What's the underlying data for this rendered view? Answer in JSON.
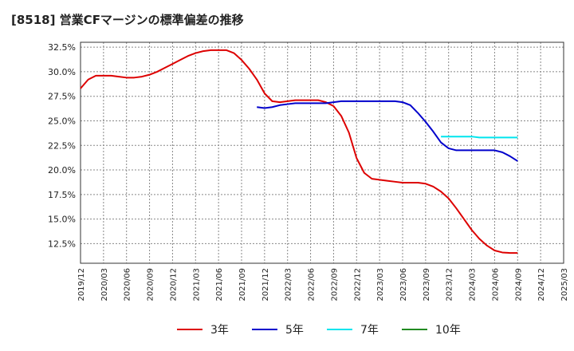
{
  "chart_data": {
    "type": "line",
    "title": "[8518]  営業CFマージンの標準偏差の推移",
    "xlabel": "",
    "ylabel": "",
    "ylim": [
      10.5,
      33.0
    ],
    "y_ticks": [
      12.5,
      15.0,
      17.5,
      20.0,
      22.5,
      25.0,
      27.5,
      30.0,
      32.5
    ],
    "y_tick_labels": [
      "12.5%",
      "15.0%",
      "17.5%",
      "20.0%",
      "22.5%",
      "25.0%",
      "27.5%",
      "30.0%",
      "32.5%"
    ],
    "x_tick_labels": [
      "2019/12",
      "2020/03",
      "2020/06",
      "2020/09",
      "2020/12",
      "2021/03",
      "2021/06",
      "2021/09",
      "2021/12",
      "2022/03",
      "2022/06",
      "2022/09",
      "2022/12",
      "2023/03",
      "2023/06",
      "2023/09",
      "2023/12",
      "2024/03",
      "2024/06",
      "2024/09",
      "2024/12",
      "2025/03"
    ],
    "grid": true,
    "legend_position": "bottom",
    "series": [
      {
        "name": "3年",
        "color": "#dd0000",
        "start": "2019/12",
        "values": [
          28.3,
          29.2,
          29.6,
          29.6,
          29.6,
          29.5,
          29.4,
          29.4,
          29.5,
          29.7,
          30.0,
          30.4,
          30.8,
          31.2,
          31.6,
          31.9,
          32.1,
          32.2,
          32.2,
          32.2,
          31.9,
          31.2,
          30.3,
          29.2,
          27.8,
          27.0,
          26.9,
          27.0,
          27.1,
          27.1,
          27.1,
          27.1,
          26.9,
          26.5,
          25.5,
          23.8,
          21.2,
          19.7,
          19.1,
          19.0,
          18.9,
          18.8,
          18.7,
          18.7,
          18.7,
          18.6,
          18.3,
          17.8,
          17.1,
          16.1,
          15.0,
          13.9,
          13.0,
          12.3,
          11.8,
          11.6,
          11.55,
          11.55
        ]
      },
      {
        "name": "5年",
        "color": "#0000cc",
        "start": "2021/11",
        "values": [
          26.4,
          26.3,
          26.4,
          26.6,
          26.7,
          26.8,
          26.8,
          26.8,
          26.8,
          26.8,
          26.9,
          27.0,
          27.0,
          27.0,
          27.0,
          27.0,
          27.0,
          27.0,
          27.0,
          26.9,
          26.6,
          25.8,
          24.9,
          23.9,
          22.8,
          22.2,
          22.0,
          22.0,
          22.0,
          22.0,
          22.0,
          22.0,
          21.8,
          21.4,
          20.9
        ]
      },
      {
        "name": "7年",
        "color": "#00e5ee",
        "start": "2023/11",
        "values": [
          23.4,
          23.4,
          23.4,
          23.4,
          23.4,
          23.3,
          23.3,
          23.3,
          23.3,
          23.3,
          23.3
        ]
      },
      {
        "name": "10年",
        "color": "#228b22",
        "start": "2024/09",
        "values": []
      }
    ]
  }
}
